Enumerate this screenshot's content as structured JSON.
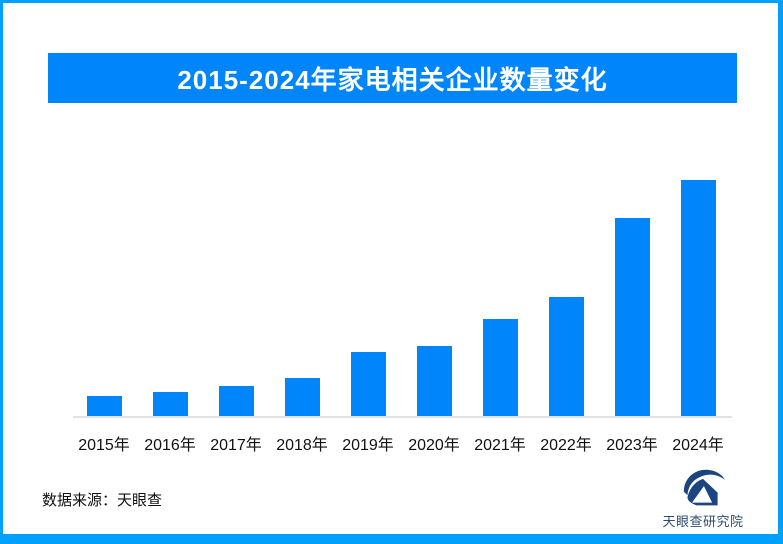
{
  "page": {
    "border_color": "#00A0FC",
    "background_color": "#ffffff"
  },
  "chart_data": {
    "type": "bar",
    "title": "2015-2024年家电相关企业数量变化",
    "title_bg_color": "#0085FA",
    "title_text_color": "#ffffff",
    "categories": [
      "2015年",
      "2016年",
      "2017年",
      "2018年",
      "2019年",
      "2020年",
      "2021年",
      "2022年",
      "2023年",
      "2024年"
    ],
    "values": [
      20,
      24,
      30,
      38,
      64,
      70,
      97,
      119,
      198,
      236
    ],
    "bar_color": "#0085FA",
    "axis_color": "#E2E2E2",
    "xlabel": "",
    "ylabel": "",
    "ylim": [
      0,
      250
    ],
    "grid": false,
    "legend": false
  },
  "footer": {
    "source_label": "数据来源：天眼查",
    "brand": {
      "icon": "tianyancha-logo-icon",
      "text": "天眼查研究院",
      "icon_color": "#1C4480",
      "text_color": "#2E4D6B"
    }
  }
}
